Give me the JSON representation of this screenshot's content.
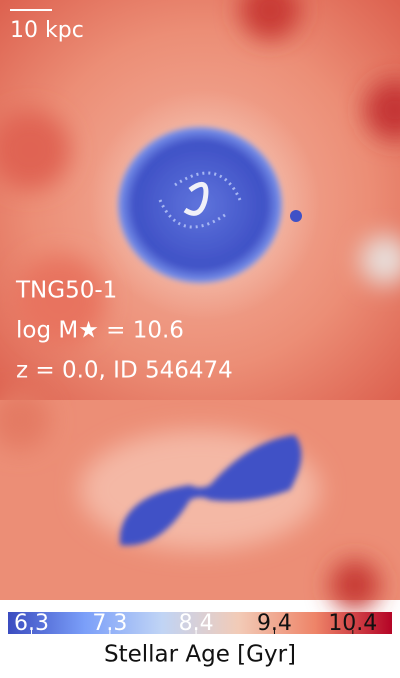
{
  "scale_bar": {
    "label": "10 kpc"
  },
  "info": {
    "lines": [
      "TNG50-1",
      "log M★ = 10.6",
      "z = 0.0, ID 546474"
    ]
  },
  "colorbar": {
    "label": "Stellar Age [Gyr]",
    "lim": [
      6.0,
      10.9
    ],
    "ticks": [
      6.3,
      7.3,
      8.4,
      9.4,
      10.4
    ],
    "colors": [
      "#3b4cc0",
      "#7b9ff9",
      "#c0d4f5",
      "#f2cbb7",
      "#ee8468",
      "#b40426"
    ]
  }
}
